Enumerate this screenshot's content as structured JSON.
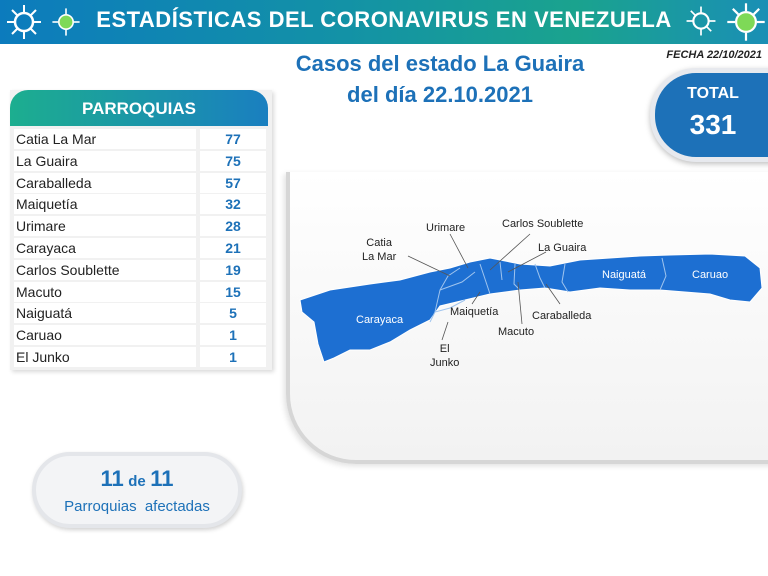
{
  "header": {
    "title": "ESTADÍSTICAS DEL CORONAVIRUS EN VENEZUELA",
    "decor_icon": "virus-icon",
    "colors": {
      "banner_start": "#0c7bbd",
      "banner_mid": "#1aa38e",
      "accent_blue": "#1d71b8"
    }
  },
  "subtitle": {
    "line1": "Casos del estado La Guaira",
    "line2": "del día 22.10.2021"
  },
  "date": "FECHA 22/10/2021",
  "total": {
    "label": "TOTAL",
    "value": "331"
  },
  "parroquias": {
    "header": "PARROQUIAS",
    "rows": [
      {
        "name": "Catia La Mar",
        "value": "77"
      },
      {
        "name": "La Guaira",
        "value": "75"
      },
      {
        "name": "Caraballeda",
        "value": "57"
      },
      {
        "name": "Maiquetía",
        "value": "32"
      },
      {
        "name": "Urimare",
        "value": "28"
      },
      {
        "name": "Carayaca",
        "value": "21"
      },
      {
        "name": "Carlos Soublette",
        "value": "19"
      },
      {
        "name": "Macuto",
        "value": "15"
      },
      {
        "name": "Naiguatá",
        "value": "5"
      },
      {
        "name": "Caruao",
        "value": "1"
      },
      {
        "name": "El Junko",
        "value": "1"
      }
    ]
  },
  "map": {
    "labels": {
      "urimare": "Urimare",
      "carlos_soublette": "Carlos Soublette",
      "catia_line1": "Catia",
      "catia_line2": "La Mar",
      "la_guaira": "La Guaira",
      "naiguata": "Naiguatá",
      "caruao": "Caruao",
      "carayaca": "Carayaca",
      "maiquetia": "Maiquetía",
      "caraballeda": "Caraballeda",
      "macuto": "Macuto",
      "el_junko_line1": "El",
      "el_junko_line2": "Junko"
    },
    "fill_color": "#1d6fd2"
  },
  "affected": {
    "count": "11",
    "connector": "de",
    "total": "11",
    "label": "Parroquias  afectadas"
  }
}
